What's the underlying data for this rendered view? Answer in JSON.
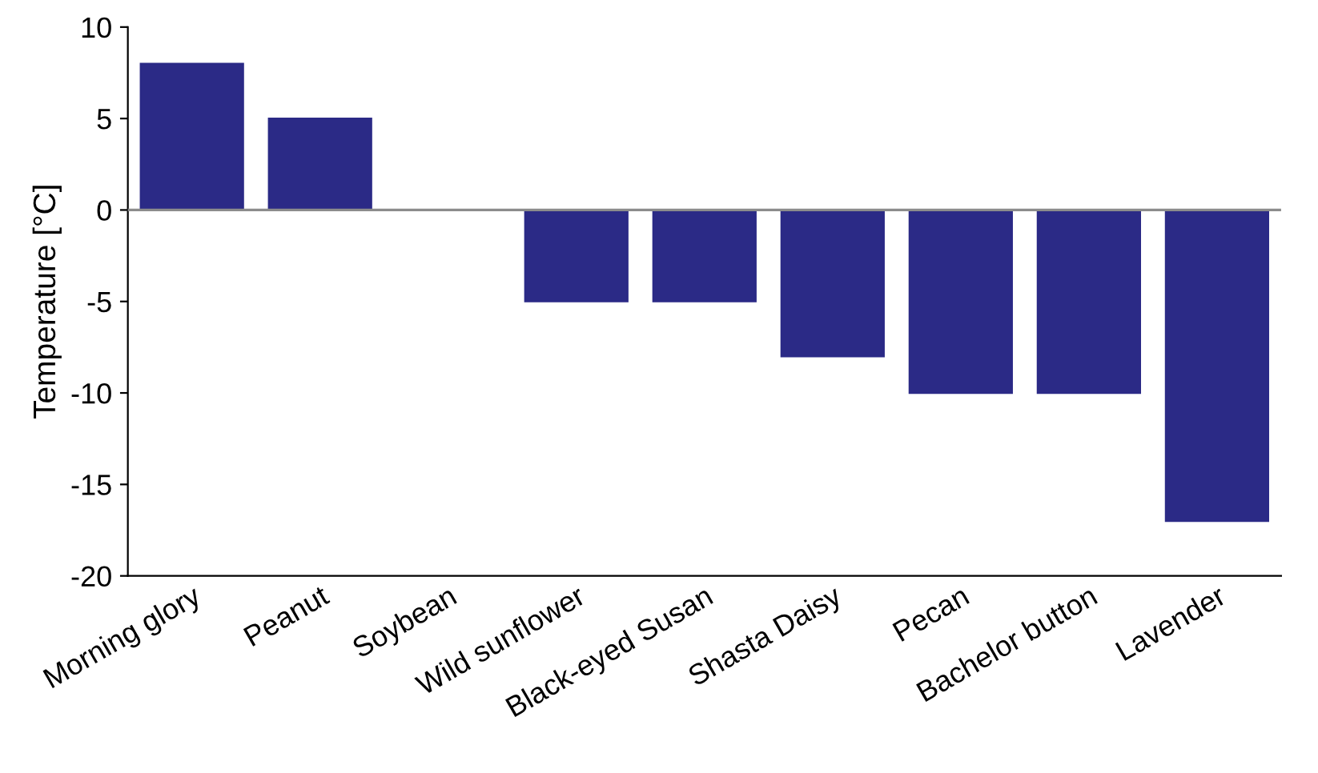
{
  "chart_data": {
    "type": "bar",
    "ylabel": "Temperature [°C]",
    "categories": [
      "Morning glory",
      "Peanut",
      "Soybean",
      "Wild sunflower",
      "Black-eyed Susan",
      "Shasta Daisy",
      "Pecan",
      "Bachelor button",
      "Lavender"
    ],
    "values": [
      8,
      5,
      0,
      -5,
      -5,
      -8,
      -10,
      -10,
      -17
    ],
    "color": "#2b2a86",
    "ylim": [
      -20,
      10
    ],
    "yticks": [
      -20,
      -15,
      -10,
      -5,
      0,
      5,
      10
    ],
    "ref_lines": [
      {
        "axis": "y",
        "value": 0,
        "color": "#8c8c8c"
      }
    ],
    "grid": false
  }
}
